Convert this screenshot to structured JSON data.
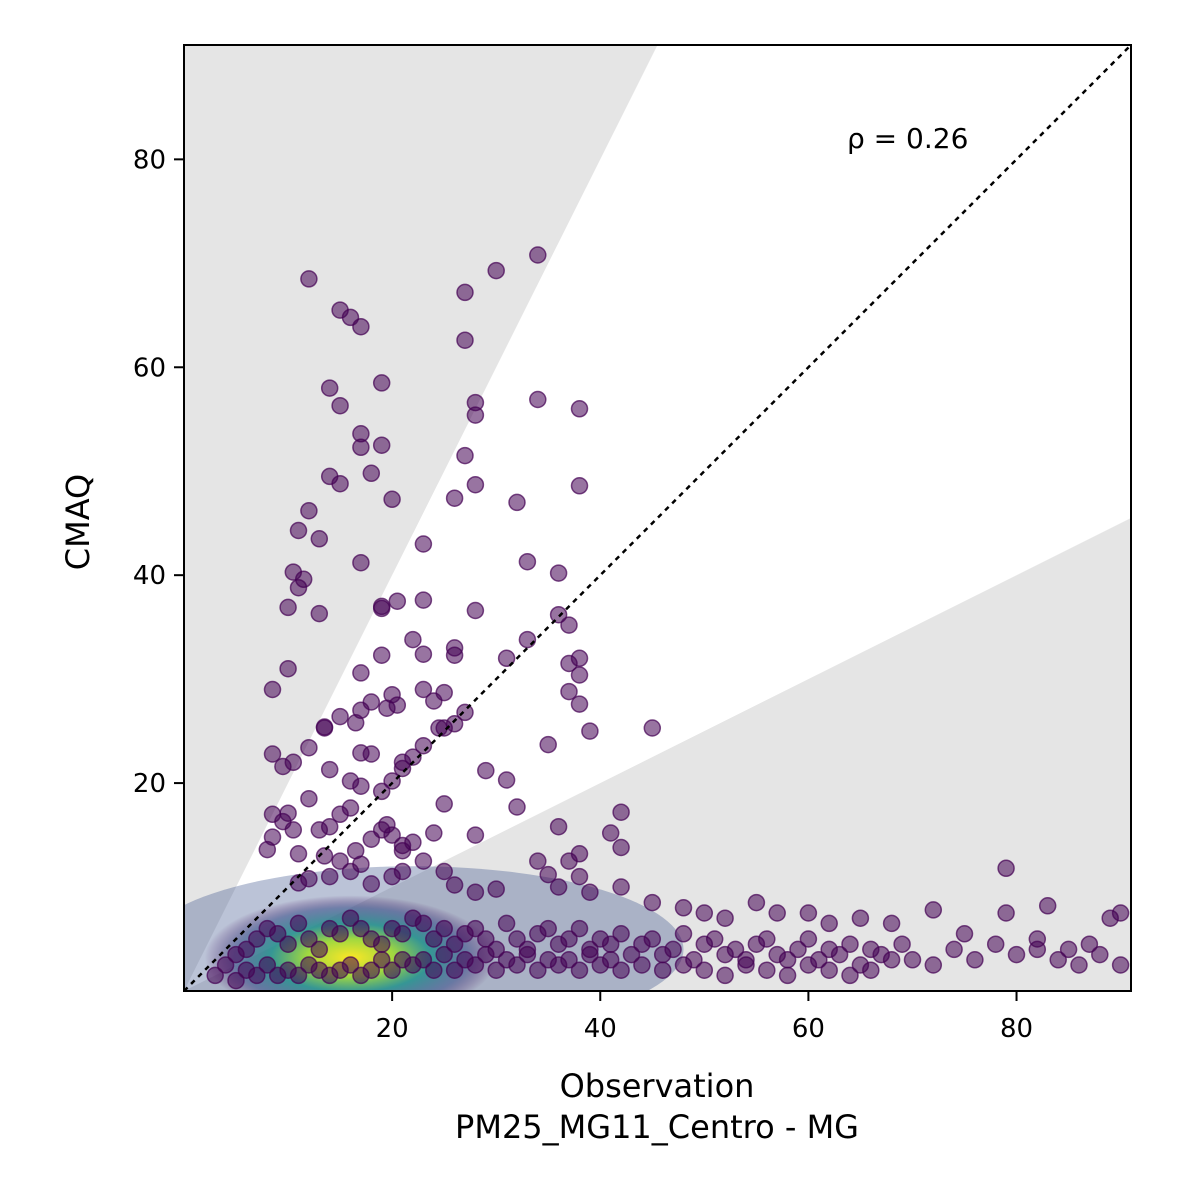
{
  "chart_data": {
    "type": "scatter",
    "xlabel": "Observation",
    "xlabel2": "PM25_MG11_Centro - MG",
    "ylabel": "CMAQ",
    "xlim": [
      0,
      91
    ],
    "ylim": [
      0,
      91
    ],
    "x_ticks": [
      20,
      40,
      60,
      80
    ],
    "y_ticks": [
      20,
      40,
      60,
      80
    ],
    "annotation": "ρ = 0.26",
    "reference_line": "1:1",
    "shaded_region": "outside factor-of-2 band",
    "colormap": [
      "#440154",
      "#3b528b",
      "#21918c",
      "#5ec962",
      "#fde725"
    ],
    "grid": false,
    "legend": "none",
    "points": [
      [
        12,
        68.5
      ],
      [
        15,
        65.5
      ],
      [
        16,
        64.8
      ],
      [
        17,
        63.9
      ],
      [
        27,
        67.2
      ],
      [
        30,
        69.3
      ],
      [
        34,
        70.8
      ],
      [
        27,
        62.6
      ],
      [
        14,
        58
      ],
      [
        15,
        56.3
      ],
      [
        19,
        58.5
      ],
      [
        28,
        56.6
      ],
      [
        28,
        55.4
      ],
      [
        34,
        56.9
      ],
      [
        38,
        56
      ],
      [
        17,
        53.6
      ],
      [
        17,
        52.3
      ],
      [
        19,
        52.5
      ],
      [
        14,
        49.5
      ],
      [
        15,
        48.8
      ],
      [
        18,
        49.8
      ],
      [
        20,
        47.3
      ],
      [
        27,
        51.5
      ],
      [
        28,
        48.7
      ],
      [
        26,
        47.4
      ],
      [
        32,
        47
      ],
      [
        38,
        48.6
      ],
      [
        12,
        46.2
      ],
      [
        11,
        44.3
      ],
      [
        13,
        43.5
      ],
      [
        10.5,
        40.3
      ],
      [
        11.5,
        39.6
      ],
      [
        11,
        38.8
      ],
      [
        10,
        36.9
      ],
      [
        13,
        36.3
      ],
      [
        17,
        41.2
      ],
      [
        19,
        37
      ],
      [
        19,
        36.8
      ],
      [
        20.5,
        37.5
      ],
      [
        23,
        37.6
      ],
      [
        23,
        43
      ],
      [
        28,
        36.6
      ],
      [
        33,
        41.3
      ],
      [
        36,
        40.2
      ],
      [
        10,
        31
      ],
      [
        8.5,
        29
      ],
      [
        19,
        32.3
      ],
      [
        17,
        30.6
      ],
      [
        17,
        27
      ],
      [
        18,
        27.8
      ],
      [
        19.5,
        27.2
      ],
      [
        20,
        28.5
      ],
      [
        20.5,
        27.5
      ],
      [
        22,
        33.8
      ],
      [
        23,
        32.4
      ],
      [
        23,
        29
      ],
      [
        24,
        27.9
      ],
      [
        25,
        28.7
      ],
      [
        26,
        33
      ],
      [
        26,
        32.3
      ],
      [
        27,
        26.8
      ],
      [
        31,
        32
      ],
      [
        33,
        33.8
      ],
      [
        36,
        36.2
      ],
      [
        37,
        35.2
      ],
      [
        37,
        31.5
      ],
      [
        38,
        32
      ],
      [
        38,
        30.4
      ],
      [
        37,
        28.8
      ],
      [
        38,
        27.6
      ],
      [
        39,
        25
      ],
      [
        8.5,
        22.8
      ],
      [
        9.5,
        21.6
      ],
      [
        10.5,
        22
      ],
      [
        12,
        23.4
      ],
      [
        13.5,
        25.4
      ],
      [
        13.5,
        25.3
      ],
      [
        15,
        26.4
      ],
      [
        16.5,
        25.8
      ],
      [
        14,
        21.3
      ],
      [
        17,
        22.9
      ],
      [
        18,
        22.8
      ],
      [
        16,
        20.2
      ],
      [
        17,
        19.7
      ],
      [
        19,
        19.2
      ],
      [
        20,
        20.2
      ],
      [
        21,
        21.4
      ],
      [
        21,
        22
      ],
      [
        22,
        22.5
      ],
      [
        23,
        23.6
      ],
      [
        24.5,
        25.3
      ],
      [
        25,
        25.3
      ],
      [
        26,
        25.7
      ],
      [
        29,
        21.2
      ],
      [
        31,
        20.3
      ],
      [
        32,
        17.7
      ],
      [
        35,
        23.7
      ],
      [
        45,
        25.3
      ],
      [
        8.5,
        17
      ],
      [
        9.5,
        16.3
      ],
      [
        10,
        17.1
      ],
      [
        8.5,
        14.8
      ],
      [
        10.5,
        15.5
      ],
      [
        11,
        13.2
      ],
      [
        12,
        18.5
      ],
      [
        13,
        15.5
      ],
      [
        13.5,
        13
      ],
      [
        14,
        15.8
      ],
      [
        15,
        17
      ],
      [
        16,
        17.6
      ],
      [
        16.5,
        13.5
      ],
      [
        18,
        14.6
      ],
      [
        19,
        15.5
      ],
      [
        19.5,
        16
      ],
      [
        20,
        15
      ],
      [
        21,
        14
      ],
      [
        21,
        13.5
      ],
      [
        22,
        14.3
      ],
      [
        24,
        15.2
      ],
      [
        25,
        18
      ],
      [
        28,
        15
      ],
      [
        36,
        15.8
      ],
      [
        38,
        13.2
      ],
      [
        41,
        15.2
      ],
      [
        42,
        17.2
      ],
      [
        42,
        13.8
      ],
      [
        79,
        11.8
      ],
      [
        8,
        13.6
      ],
      [
        11,
        10.4
      ],
      [
        12,
        10.8
      ],
      [
        14,
        11
      ],
      [
        15,
        12.5
      ],
      [
        16,
        11.5
      ],
      [
        17,
        12.2
      ],
      [
        18,
        10.3
      ],
      [
        20,
        11
      ],
      [
        21,
        11.5
      ],
      [
        23,
        12.5
      ],
      [
        25,
        11.5
      ],
      [
        26,
        10.2
      ],
      [
        28,
        9.5
      ],
      [
        30,
        9.8
      ],
      [
        34,
        12.5
      ],
      [
        35,
        11.2
      ],
      [
        36,
        10
      ],
      [
        37,
        12.5
      ],
      [
        38,
        11
      ],
      [
        39,
        9.5
      ],
      [
        42,
        10
      ],
      [
        45,
        8.5
      ],
      [
        48,
        8
      ],
      [
        50,
        7.5
      ],
      [
        52,
        7
      ],
      [
        55,
        8.5
      ],
      [
        57,
        7.5
      ],
      [
        60,
        7.5
      ],
      [
        62,
        6.5
      ],
      [
        65,
        7
      ],
      [
        68,
        6.5
      ],
      [
        72,
        7.8
      ],
      [
        75,
        5.5
      ],
      [
        79,
        7.5
      ],
      [
        82,
        5
      ],
      [
        83,
        8.2
      ],
      [
        85,
        4
      ],
      [
        87,
        4.5
      ],
      [
        89,
        7
      ],
      [
        90,
        7.5
      ],
      [
        3,
        1.5
      ],
      [
        4,
        2.5
      ],
      [
        5,
        3.5
      ],
      [
        6,
        4
      ],
      [
        7,
        5
      ],
      [
        8,
        6
      ],
      [
        9,
        5.5
      ],
      [
        10,
        4.5
      ],
      [
        11,
        6.5
      ],
      [
        12,
        5
      ],
      [
        13,
        4
      ],
      [
        14,
        6
      ],
      [
        15,
        5.5
      ],
      [
        16,
        7
      ],
      [
        17,
        6
      ],
      [
        18,
        5
      ],
      [
        19,
        4.5
      ],
      [
        20,
        6
      ],
      [
        21,
        5.5
      ],
      [
        22,
        7
      ],
      [
        23,
        6.5
      ],
      [
        24,
        5
      ],
      [
        25,
        6
      ],
      [
        26,
        4.5
      ],
      [
        27,
        5.5
      ],
      [
        28,
        6
      ],
      [
        29,
        5
      ],
      [
        30,
        4
      ],
      [
        31,
        6.5
      ],
      [
        32,
        5
      ],
      [
        33,
        4
      ],
      [
        34,
        5.5
      ],
      [
        35,
        6
      ],
      [
        36,
        4.5
      ],
      [
        37,
        5
      ],
      [
        38,
        6
      ],
      [
        39,
        4
      ],
      [
        40,
        5
      ],
      [
        41,
        4.5
      ],
      [
        42,
        5.5
      ],
      [
        43,
        3.5
      ],
      [
        44,
        4.5
      ],
      [
        45,
        5
      ],
      [
        46,
        3.5
      ],
      [
        47,
        4
      ],
      [
        48,
        5.5
      ],
      [
        49,
        3
      ],
      [
        50,
        4.5
      ],
      [
        51,
        5
      ],
      [
        52,
        3.5
      ],
      [
        53,
        4
      ],
      [
        54,
        3
      ],
      [
        55,
        4.5
      ],
      [
        56,
        5
      ],
      [
        57,
        3.5
      ],
      [
        58,
        3
      ],
      [
        59,
        4
      ],
      [
        60,
        5
      ],
      [
        61,
        3
      ],
      [
        62,
        4
      ],
      [
        63,
        3.5
      ],
      [
        64,
        4.5
      ],
      [
        65,
        2.5
      ],
      [
        66,
        4
      ],
      [
        67,
        3.5
      ],
      [
        68,
        3
      ],
      [
        69,
        4.5
      ],
      [
        70,
        3
      ],
      [
        72,
        2.5
      ],
      [
        74,
        4
      ],
      [
        76,
        3
      ],
      [
        78,
        4.5
      ],
      [
        80,
        3.5
      ],
      [
        82,
        4
      ],
      [
        84,
        3
      ],
      [
        86,
        2.5
      ],
      [
        88,
        3.5
      ],
      [
        90,
        2.5
      ],
      [
        5,
        1
      ],
      [
        6,
        2
      ],
      [
        7,
        1.5
      ],
      [
        8,
        2.5
      ],
      [
        9,
        1.5
      ],
      [
        10,
        2
      ],
      [
        11,
        1.5
      ],
      [
        12,
        2.5
      ],
      [
        13,
        2
      ],
      [
        14,
        1.5
      ],
      [
        15,
        2
      ],
      [
        16,
        2.5
      ],
      [
        17,
        1.5
      ],
      [
        18,
        2
      ],
      [
        19,
        3
      ],
      [
        20,
        2
      ],
      [
        21,
        3
      ],
      [
        22,
        2.5
      ],
      [
        23,
        3
      ],
      [
        24,
        2
      ],
      [
        25,
        3.5
      ],
      [
        26,
        2
      ],
      [
        27,
        3
      ],
      [
        28,
        2.5
      ],
      [
        29,
        3.5
      ],
      [
        30,
        2
      ],
      [
        31,
        3
      ],
      [
        32,
        2.5
      ],
      [
        33,
        3.5
      ],
      [
        34,
        2
      ],
      [
        35,
        3
      ],
      [
        36,
        2.5
      ],
      [
        37,
        3
      ],
      [
        38,
        2
      ],
      [
        39,
        3.5
      ],
      [
        40,
        2.5
      ],
      [
        41,
        3
      ],
      [
        42,
        2
      ],
      [
        44,
        2.5
      ],
      [
        46,
        2
      ],
      [
        48,
        2.5
      ],
      [
        50,
        2
      ],
      [
        52,
        1.5
      ],
      [
        54,
        2.5
      ],
      [
        56,
        2
      ],
      [
        58,
        1.5
      ],
      [
        60,
        2.5
      ],
      [
        62,
        2
      ],
      [
        64,
        1.5
      ],
      [
        66,
        2
      ]
    ]
  }
}
